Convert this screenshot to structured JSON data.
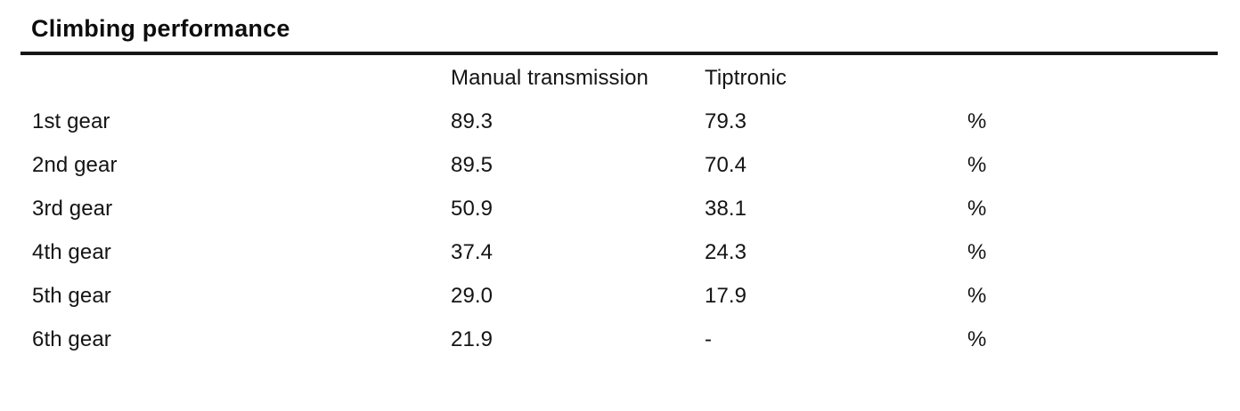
{
  "table": {
    "title": "Climbing performance",
    "header": {
      "label": "",
      "manual": "Manual transmission",
      "tiptronic": "Tiptronic",
      "unit": ""
    },
    "rows": [
      {
        "label": "1st gear",
        "manual": "89.3",
        "tiptronic": "79.3",
        "unit": "%"
      },
      {
        "label": "2nd gear",
        "manual": "89.5",
        "tiptronic": "70.4",
        "unit": "%"
      },
      {
        "label": "3rd gear",
        "manual": "50.9",
        "tiptronic": "38.1",
        "unit": "%"
      },
      {
        "label": "4th gear",
        "manual": "37.4",
        "tiptronic": "24.3",
        "unit": "%"
      },
      {
        "label": "5th gear",
        "manual": "29.0",
        "tiptronic": "17.9",
        "unit": "%"
      },
      {
        "label": "6th gear",
        "manual": "21.9",
        "tiptronic": "-",
        "unit": "%"
      }
    ]
  },
  "chart_data": {
    "type": "table",
    "title": "Climbing performance",
    "categories": [
      "1st gear",
      "2nd gear",
      "3rd gear",
      "4th gear",
      "5th gear",
      "6th gear"
    ],
    "series": [
      {
        "name": "Manual transmission",
        "values": [
          89.3,
          89.5,
          50.9,
          37.4,
          29.0,
          21.9
        ]
      },
      {
        "name": "Tiptronic",
        "values": [
          79.3,
          70.4,
          38.1,
          24.3,
          17.9,
          null
        ]
      }
    ],
    "unit": "%"
  },
  "colors": {
    "background": "#ffffff",
    "text": "#141414",
    "rule": "#161616"
  }
}
